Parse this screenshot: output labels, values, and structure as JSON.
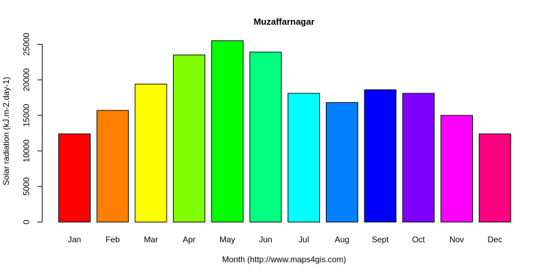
{
  "chart_data": {
    "type": "bar",
    "title": "Muzaffarnagar",
    "xlabel": "Month (http://www.maps4gis.com)",
    "ylabel": "Solar radiation (kJ.m-2.day-1)",
    "categories": [
      "Jan",
      "Feb",
      "Mar",
      "Apr",
      "May",
      "Jun",
      "Jul",
      "Aug",
      "Sept",
      "Oct",
      "Nov",
      "Dec"
    ],
    "values": [
      12400,
      15700,
      19400,
      23500,
      25500,
      23900,
      18100,
      16800,
      18600,
      18100,
      15000,
      12400
    ],
    "colors": [
      "#FF0000",
      "#FF8000",
      "#FFFF00",
      "#80FF00",
      "#00FF00",
      "#00FF80",
      "#00FFFF",
      "#0080FF",
      "#0000FF",
      "#8000FF",
      "#FF00FF",
      "#FF0080"
    ],
    "yticks": [
      0,
      5000,
      10000,
      15000,
      20000,
      25000
    ],
    "ylim": [
      0,
      25500
    ],
    "grid": false,
    "legend": "none"
  }
}
